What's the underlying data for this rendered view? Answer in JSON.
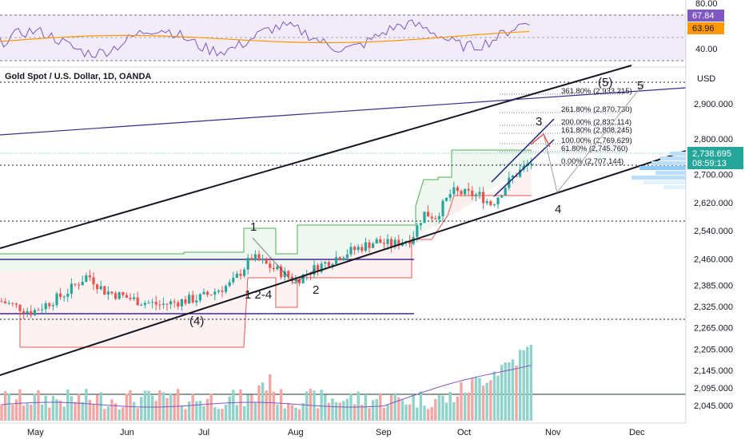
{
  "header": {
    "symbol_title": "Gold Spot / U.S. Dollar, 1D, OANDA",
    "currency": "USD"
  },
  "chart_data": {
    "type": "candlestick",
    "title": "Gold Spot / U.S. Dollar, 1D, OANDA",
    "price_axis": {
      "ticks": [
        "2,900.000",
        "2,800.000",
        "2,700.000",
        "2,620.000",
        "2,540.000",
        "2,460.000",
        "2,385.000",
        "2,325.000",
        "2,265.000",
        "2,205.000",
        "2,145.000",
        "2,095.000",
        "2,045.000"
      ],
      "current_price": "2,738.695",
      "countdown": "08:59:13"
    },
    "rsi_axis": {
      "ticks": [
        "80.00",
        "40.00"
      ],
      "rsi_value": "67.84",
      "rsi_ma_value": "63.96"
    },
    "time_axis": [
      "May",
      "Jun",
      "Jul",
      "Aug",
      "Sep",
      "Oct",
      "Nov",
      "Dec"
    ],
    "fib_levels": [
      {
        "label": "361.80% (2,933.215)",
        "price": 2933.215
      },
      {
        "label": "261.80% (2,870.730)",
        "price": 2870.73
      },
      {
        "label": "200.00% (2,832.114)",
        "price": 2832.114
      },
      {
        "label": "161.80% (2,808.245)",
        "price": 2808.245
      },
      {
        "label": "100.00% (2,769.629)",
        "price": 2769.629
      },
      {
        "label": "61.80% (2,745.760)",
        "price": 2745.76
      },
      {
        "label": "0.00% (2,707.144)",
        "price": 2707.144
      }
    ],
    "wave_labels": [
      "(5)",
      "5",
      "3",
      "4",
      "1",
      "2",
      "(4)",
      "1 2-4"
    ],
    "colors": {
      "up": "#26a69a",
      "down": "#ef5350",
      "rsi": "#7e57c2",
      "rsi_ma": "#ff9800",
      "channel": "#131722",
      "purple_line": "#3f2a8c"
    }
  }
}
